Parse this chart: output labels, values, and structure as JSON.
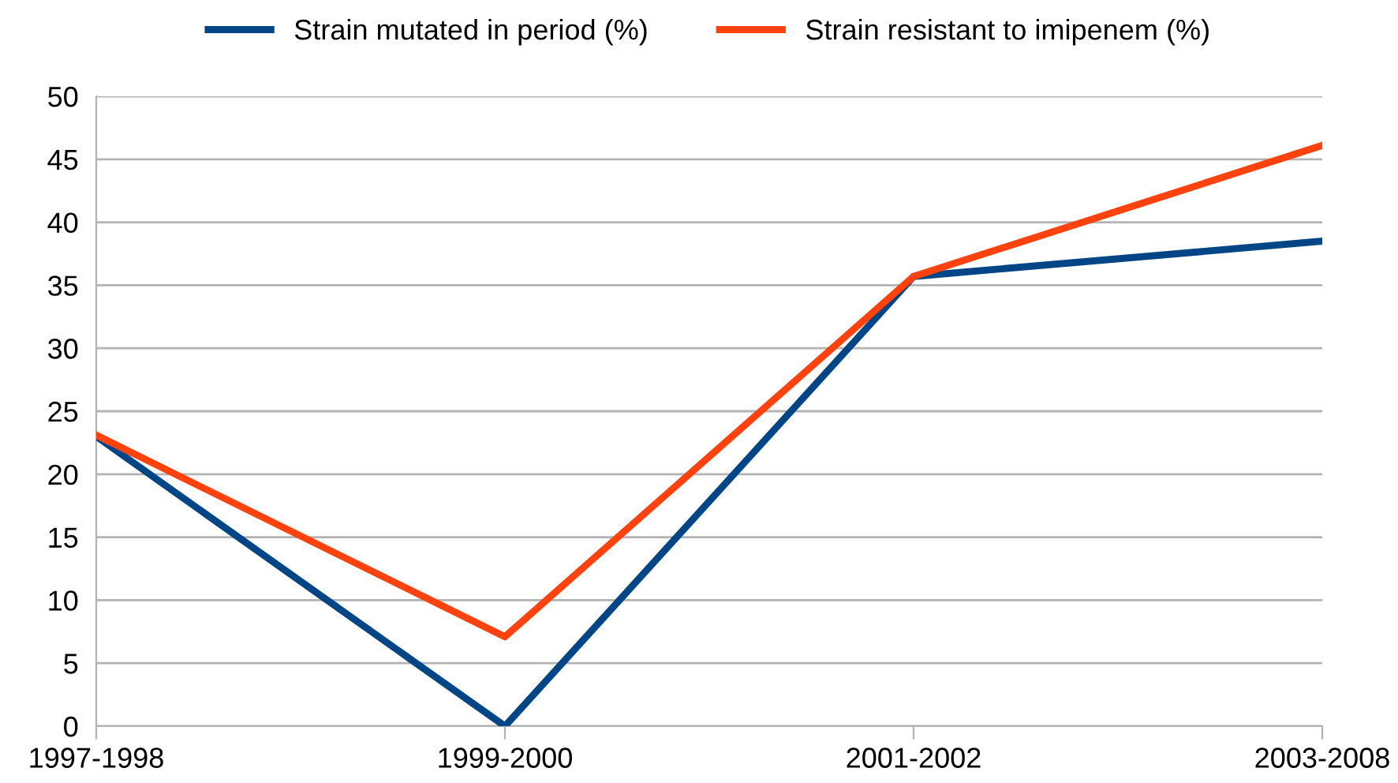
{
  "chart_data": {
    "type": "line",
    "categories": [
      "1997-1998",
      "1999-2000",
      "2001-2002",
      "2003-2008"
    ],
    "series": [
      {
        "name": "Strain mutated in period (%)",
        "color": "#004586",
        "values": [
          23.0,
          0.0,
          35.7,
          38.5
        ]
      },
      {
        "name": "Strain resistant to imipenem (%)",
        "color": "#ff420e",
        "values": [
          23.1,
          7.1,
          35.7,
          46.1
        ]
      }
    ],
    "ylim": [
      0,
      50
    ],
    "yticks": [
      0,
      5,
      10,
      15,
      20,
      25,
      30,
      35,
      40,
      45,
      50
    ],
    "grid": "y",
    "legend": "top",
    "marker": "none",
    "line_style": "solid"
  }
}
